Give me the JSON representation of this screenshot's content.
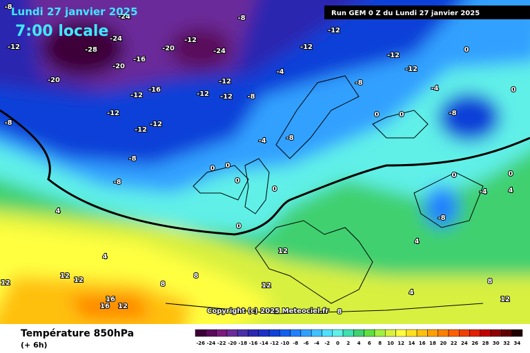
{
  "header": {
    "date": "Lundi 27 janvier 2025",
    "time": "7:00 locale",
    "run": "Run GEM 0 Z du Lundi 27 janvier 2025"
  },
  "map": {
    "copyright": "Copyright (c) 2025 Meteociel.fr",
    "contour_labels": [
      -24,
      -24,
      -28,
      -20,
      -16,
      -20,
      -12,
      -8,
      -20,
      -12,
      -24,
      -8,
      -12,
      -12,
      -12,
      -16,
      -12,
      -12,
      -12,
      -12,
      -8,
      -8,
      -8,
      -8,
      -4,
      -12,
      -12,
      -12,
      -12,
      -8,
      -4,
      -8,
      0,
      0,
      0,
      0,
      -4,
      -8,
      0,
      0,
      0,
      0,
      0,
      4,
      4,
      12,
      12,
      12,
      16,
      16,
      12,
      8,
      8,
      12,
      12,
      4,
      8,
      -8,
      0,
      -4,
      4,
      4,
      8,
      12,
      0
    ]
  },
  "footer": {
    "title": "Température 850hPa",
    "subtitle": "(+ 6h)",
    "scale_values": [
      -26,
      -24,
      -22,
      -20,
      -18,
      -16,
      -14,
      -12,
      -10,
      -8,
      -6,
      -4,
      -2,
      0,
      2,
      4,
      6,
      8,
      10,
      12,
      14,
      16,
      18,
      20,
      22,
      24,
      26,
      28,
      30,
      32,
      34
    ],
    "scale_colors": [
      "#3c0038",
      "#5a0a5a",
      "#7a1a7a",
      "#6a2a9a",
      "#4a30a8",
      "#2a28b0",
      "#1c30c8",
      "#1040d8",
      "#1060f0",
      "#2080ff",
      "#30a0ff",
      "#40c0ff",
      "#50e0ff",
      "#60f0e8",
      "#40e0b0",
      "#40d070",
      "#60e040",
      "#a0f040",
      "#d8f040",
      "#ffff40",
      "#ffe020",
      "#ffc010",
      "#ffa000",
      "#ff8000",
      "#ff6000",
      "#f04000",
      "#e02000",
      "#c00000",
      "#900000",
      "#600000",
      "#200000"
    ]
  }
}
